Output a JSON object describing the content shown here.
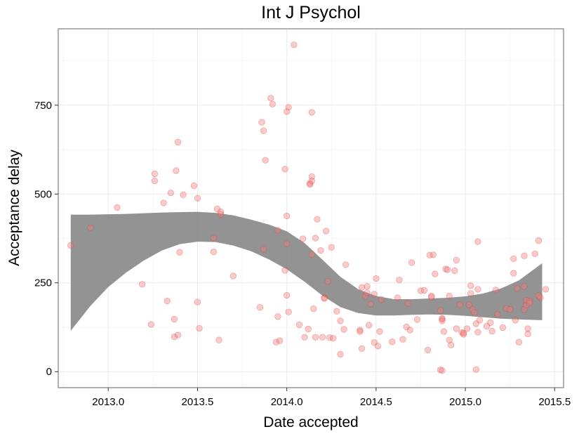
{
  "chart_data": {
    "type": "scatter",
    "title": "Int J Psychol",
    "xlabel": "Date accepted",
    "ylabel": "Acceptance delay",
    "xlim": [
      2012.72,
      2015.55
    ],
    "ylim": [
      -45,
      965
    ],
    "x_ticks": [
      2013.0,
      2013.5,
      2014.0,
      2014.5,
      2015.0,
      2015.5
    ],
    "x_tick_labels": [
      "2013.0",
      "2013.5",
      "2014.0",
      "2014.5",
      "2015.0",
      "2015.5"
    ],
    "y_ticks": [
      0,
      250,
      500,
      750
    ],
    "y_tick_labels": [
      "0",
      "250",
      "500",
      "750"
    ],
    "grid": true,
    "point_color": "#f08080",
    "band_color": "#808080",
    "points": [
      [
        2012.79,
        355
      ],
      [
        2012.9,
        405
      ],
      [
        2013.05,
        462
      ],
      [
        2013.19,
        246
      ],
      [
        2013.24,
        133
      ],
      [
        2013.26,
        557
      ],
      [
        2013.26,
        537
      ],
      [
        2013.31,
        475
      ],
      [
        2013.33,
        199
      ],
      [
        2013.35,
        503
      ],
      [
        2013.37,
        148
      ],
      [
        2013.37,
        98
      ],
      [
        2013.38,
        566
      ],
      [
        2013.39,
        646
      ],
      [
        2013.39,
        103
      ],
      [
        2013.4,
        336
      ],
      [
        2013.42,
        498
      ],
      [
        2013.48,
        523
      ],
      [
        2013.5,
        488
      ],
      [
        2013.5,
        196
      ],
      [
        2013.51,
        122
      ],
      [
        2013.59,
        376
      ],
      [
        2013.59,
        337
      ],
      [
        2013.61,
        458
      ],
      [
        2013.62,
        89
      ],
      [
        2013.63,
        450
      ],
      [
        2013.63,
        443
      ],
      [
        2013.7,
        269
      ],
      [
        2013.85,
        181
      ],
      [
        2013.86,
        702
      ],
      [
        2013.87,
        678
      ],
      [
        2013.87,
        345
      ],
      [
        2013.88,
        595
      ],
      [
        2013.91,
        770
      ],
      [
        2013.92,
        753
      ],
      [
        2013.94,
        83
      ],
      [
        2013.95,
        155
      ],
      [
        2013.95,
        398
      ],
      [
        2013.96,
        87
      ],
      [
        2013.99,
        285
      ],
      [
        2013.99,
        570
      ],
      [
        2014.0,
        732
      ],
      [
        2014.0,
        438
      ],
      [
        2014.0,
        360
      ],
      [
        2014.0,
        215
      ],
      [
        2014.01,
        744
      ],
      [
        2014.01,
        168
      ],
      [
        2014.04,
        920
      ],
      [
        2014.07,
        132
      ],
      [
        2014.09,
        374
      ],
      [
        2014.1,
        97
      ],
      [
        2014.12,
        120
      ],
      [
        2014.13,
        530
      ],
      [
        2014.13,
        527
      ],
      [
        2014.14,
        549
      ],
      [
        2014.14,
        537
      ],
      [
        2014.14,
        730
      ],
      [
        2014.14,
        330
      ],
      [
        2014.15,
        177
      ],
      [
        2014.16,
        376
      ],
      [
        2014.16,
        97
      ],
      [
        2014.17,
        429
      ],
      [
        2014.19,
        341
      ],
      [
        2014.2,
        97
      ],
      [
        2014.21,
        208
      ],
      [
        2014.21,
        206
      ],
      [
        2014.22,
        396
      ],
      [
        2014.23,
        254
      ],
      [
        2014.24,
        96
      ],
      [
        2014.25,
        350
      ],
      [
        2014.26,
        94
      ],
      [
        2014.28,
        170
      ],
      [
        2014.3,
        143
      ],
      [
        2014.3,
        49
      ],
      [
        2014.32,
        119
      ],
      [
        2014.33,
        301
      ],
      [
        2014.41,
        117
      ],
      [
        2014.41,
        113
      ],
      [
        2014.42,
        65
      ],
      [
        2014.42,
        237
      ],
      [
        2014.44,
        212
      ],
      [
        2014.45,
        222
      ],
      [
        2014.45,
        240
      ],
      [
        2014.46,
        131
      ],
      [
        2014.47,
        190
      ],
      [
        2014.49,
        218
      ],
      [
        2014.49,
        82
      ],
      [
        2014.5,
        262
      ],
      [
        2014.51,
        72
      ],
      [
        2014.52,
        113
      ],
      [
        2014.53,
        203
      ],
      [
        2014.59,
        84
      ],
      [
        2014.62,
        208
      ],
      [
        2014.63,
        258
      ],
      [
        2014.65,
        91
      ],
      [
        2014.67,
        126
      ],
      [
        2014.68,
        192
      ],
      [
        2014.69,
        117
      ],
      [
        2014.7,
        307
      ],
      [
        2014.73,
        147
      ],
      [
        2014.75,
        228
      ],
      [
        2014.77,
        229
      ],
      [
        2014.79,
        61
      ],
      [
        2014.8,
        328
      ],
      [
        2014.81,
        213
      ],
      [
        2014.81,
        210
      ],
      [
        2014.82,
        329
      ],
      [
        2014.83,
        275
      ],
      [
        2014.86,
        172
      ],
      [
        2014.86,
        5
      ],
      [
        2014.87,
        3
      ],
      [
        2014.87,
        150
      ],
      [
        2014.87,
        148
      ],
      [
        2014.87,
        143
      ],
      [
        2014.88,
        113
      ],
      [
        2014.89,
        289
      ],
      [
        2014.9,
        287
      ],
      [
        2014.91,
        89
      ],
      [
        2014.91,
        213
      ],
      [
        2014.92,
        75
      ],
      [
        2014.94,
        284
      ],
      [
        2014.95,
        314
      ],
      [
        2014.95,
        121
      ],
      [
        2014.97,
        188
      ],
      [
        2014.98,
        110
      ],
      [
        2014.99,
        105
      ],
      [
        2014.99,
        109
      ],
      [
        2015.01,
        121
      ],
      [
        2015.02,
        188
      ],
      [
        2015.03,
        220
      ],
      [
        2015.03,
        242
      ],
      [
        2015.04,
        175
      ],
      [
        2015.05,
        166
      ],
      [
        2015.06,
        135
      ],
      [
        2015.06,
        6
      ],
      [
        2015.07,
        366
      ],
      [
        2015.07,
        111
      ],
      [
        2015.07,
        232
      ],
      [
        2015.08,
        145
      ],
      [
        2015.12,
        128
      ],
      [
        2015.14,
        138
      ],
      [
        2015.15,
        114
      ],
      [
        2015.17,
        230
      ],
      [
        2015.18,
        161
      ],
      [
        2015.21,
        124
      ],
      [
        2015.23,
        178
      ],
      [
        2015.25,
        175
      ],
      [
        2015.27,
        277
      ],
      [
        2015.27,
        318
      ],
      [
        2015.28,
        145
      ],
      [
        2015.29,
        234
      ],
      [
        2015.3,
        83
      ],
      [
        2015.33,
        175
      ],
      [
        2015.33,
        240
      ],
      [
        2015.33,
        326
      ],
      [
        2015.34,
        187
      ],
      [
        2015.34,
        201
      ],
      [
        2015.35,
        121
      ],
      [
        2015.35,
        106
      ],
      [
        2015.36,
        198
      ],
      [
        2015.36,
        193
      ],
      [
        2015.39,
        332
      ],
      [
        2015.41,
        214
      ],
      [
        2015.41,
        369
      ],
      [
        2015.42,
        209
      ],
      [
        2015.45,
        232
      ]
    ],
    "band": {
      "x": [
        2012.79,
        2012.9,
        2013.0,
        2013.1,
        2013.2,
        2013.3,
        2013.4,
        2013.5,
        2013.6,
        2013.7,
        2013.8,
        2013.9,
        2014.0,
        2014.1,
        2014.2,
        2014.3,
        2014.4,
        2014.5,
        2014.6,
        2014.7,
        2014.8,
        2014.9,
        2015.0,
        2015.1,
        2015.2,
        2015.3,
        2015.43
      ],
      "upper": [
        442,
        442,
        443,
        444,
        446,
        448,
        449,
        450,
        447,
        440,
        428,
        414,
        395,
        362,
        315,
        267,
        232,
        213,
        204,
        204,
        206,
        208,
        212,
        220,
        234,
        257,
        305
      ],
      "lower": [
        115,
        185,
        238,
        279,
        313,
        341,
        359,
        366,
        365,
        355,
        339,
        316,
        288,
        253,
        214,
        182,
        165,
        158,
        158,
        160,
        161,
        160,
        157,
        153,
        149,
        147,
        145
      ]
    }
  }
}
